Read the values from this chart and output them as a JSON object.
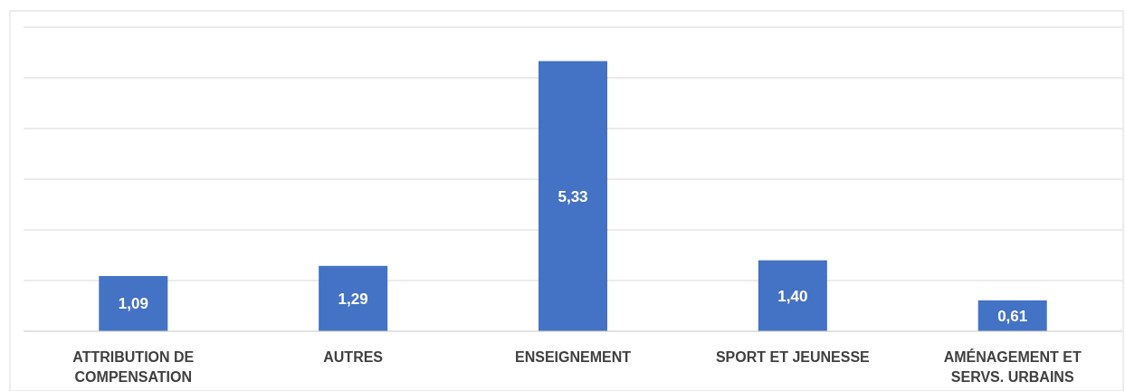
{
  "chart_data": {
    "type": "bar",
    "categories": [
      "ATTRIBUTION DE COMPENSATION",
      "AUTRES",
      "ENSEIGNEMENT",
      "SPORT ET JEUNESSE",
      "AMÉNAGEMENT ET SERVS. URBAINS"
    ],
    "values": [
      1.09,
      1.29,
      5.33,
      1.4,
      0.61
    ],
    "value_labels": [
      "1,09",
      "1,29",
      "5,33",
      "1,40",
      "0,61"
    ],
    "color": "#4472c4",
    "ylim": [
      0,
      6
    ],
    "yticks": [
      {
        "value": 0,
        "label": null
      },
      {
        "value": 1,
        "label": null
      },
      {
        "value": 2,
        "label": null
      },
      {
        "value": 3,
        "label": null
      },
      {
        "value": 4,
        "label": null
      },
      {
        "value": 5,
        "label": null
      },
      {
        "value": 6,
        "label": null
      }
    ],
    "grid": "y",
    "tick_labels": "x"
  }
}
